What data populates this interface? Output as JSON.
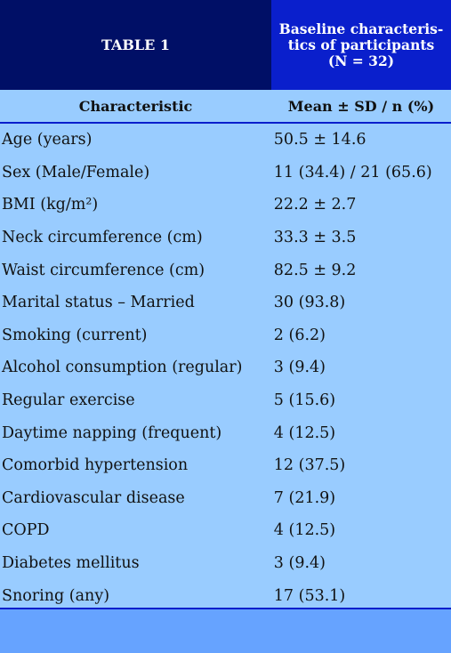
{
  "header": {
    "table_label": "TABLE 1",
    "caption": "Baseline characteris-\ntics of participants\n(N = 32)"
  },
  "columns": {
    "characteristic": "Characteristic",
    "value": "Mean ± SD / n (%)"
  },
  "rows": [
    {
      "label": "Age (years)",
      "value": "50.5 ± 14.6"
    },
    {
      "label": "Sex (Male/Female)",
      "value": "11 (34.4)  /  21 (65.6)"
    },
    {
      "label": "BMI (kg/m²)",
      "value": "22.2 ± 2.7"
    },
    {
      "label": "Neck circumference (cm)",
      "value": "33.3 ± 3.5"
    },
    {
      "label": "Waist circumference (cm)",
      "value": "82.5 ± 9.2"
    },
    {
      "label": "Marital status – Married",
      "value": "30 (93.8)"
    },
    {
      "label": "Smoking (current)",
      "value": "2 (6.2)"
    },
    {
      "label": "Alcohol consumption (regular)",
      "value": "3 (9.4)"
    },
    {
      "label": "Regular exercise",
      "value": "5 (15.6)"
    },
    {
      "label": "Daytime napping (frequent)",
      "value": "4 (12.5)"
    },
    {
      "label": "Comorbid hypertension",
      "value": "12 (37.5)"
    },
    {
      "label": "Cardiovascular disease",
      "value": "7 (21.9)"
    },
    {
      "label": "COPD",
      "value": "4 (12.5)"
    },
    {
      "label": "Diabetes mellitus",
      "value": "3 (9.4)"
    },
    {
      "label": "Snoring (any)",
      "value": "17 (53.1)"
    }
  ]
}
